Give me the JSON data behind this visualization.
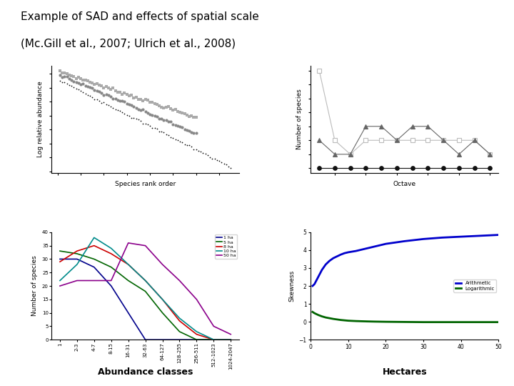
{
  "title_line1": "Example of SAD and effects of spatial scale",
  "title_line2": "(Mc.Gill et al., 2007; Ulrich et al., 2008)",
  "title_fontsize": 11,
  "sad_xlabel": "Species rank order",
  "sad_ylabel": "Log relative abundance",
  "octave_xlabel": "Octave",
  "octave_ylabel": "Number of species",
  "octave_series": [
    {
      "marker": "s",
      "color": "#bbbbbb",
      "mfc": "white",
      "x": [
        1,
        2,
        3,
        4,
        5,
        6,
        7,
        8,
        9,
        10,
        11,
        12
      ],
      "y": [
        8,
        3,
        2,
        3,
        3,
        3,
        3,
        3,
        3,
        3,
        3,
        2
      ]
    },
    {
      "marker": "^",
      "color": "#666666",
      "mfc": "#666666",
      "x": [
        1,
        2,
        3,
        4,
        5,
        6,
        7,
        8,
        9,
        10,
        11,
        12
      ],
      "y": [
        3,
        2,
        2,
        4,
        4,
        3,
        4,
        4,
        3,
        2,
        3,
        2
      ]
    },
    {
      "marker": "o",
      "color": "#111111",
      "mfc": "#111111",
      "x": [
        1,
        2,
        3,
        4,
        5,
        6,
        7,
        8,
        9,
        10,
        11,
        12
      ],
      "y": [
        1,
        1,
        1,
        1,
        1,
        1,
        1,
        1,
        1,
        1,
        1,
        1
      ]
    }
  ],
  "abund_xlabel": "Abundance classes",
  "abund_ylabel": "Number of species",
  "abund_xticks": [
    "1",
    "2-3",
    "4-7",
    "8-15",
    "16-31",
    "32-63",
    "64-127",
    "128-255",
    "256-511",
    "512-1023",
    "1024-2047"
  ],
  "abund_series": [
    {
      "label": "1 ha",
      "color": "#00008B",
      "y": [
        30,
        30,
        27,
        20,
        10,
        0,
        0,
        0,
        0,
        0,
        0
      ]
    },
    {
      "label": "5 ha",
      "color": "#006400",
      "y": [
        33,
        32,
        30,
        27,
        22,
        18,
        10,
        3,
        0,
        0,
        0
      ]
    },
    {
      "label": "8 ha",
      "color": "#CC0000",
      "y": [
        29,
        33,
        35,
        32,
        28,
        22,
        15,
        7,
        2,
        0,
        0
      ]
    },
    {
      "label": "10 ha",
      "color": "#008B8B",
      "y": [
        22,
        28,
        38,
        34,
        28,
        22,
        15,
        8,
        3,
        0,
        0
      ]
    },
    {
      "label": "50 ha",
      "color": "#8B008B",
      "y": [
        20,
        22,
        22,
        22,
        36,
        35,
        28,
        22,
        15,
        5,
        2
      ]
    }
  ],
  "skew_xlabel": "Hectares",
  "skew_ylabel": "Skewness",
  "skew_series": [
    {
      "label": "Arithmetic",
      "color": "#0000CC",
      "x": [
        0.5,
        1,
        2,
        3,
        4,
        5,
        6,
        7,
        8,
        9,
        10,
        12,
        15,
        17,
        20,
        25,
        30,
        35,
        40,
        45,
        50
      ],
      "y": [
        2.0,
        2.1,
        2.5,
        2.9,
        3.2,
        3.4,
        3.55,
        3.65,
        3.75,
        3.83,
        3.88,
        3.95,
        4.1,
        4.2,
        4.35,
        4.5,
        4.62,
        4.7,
        4.75,
        4.8,
        4.85
      ]
    },
    {
      "label": "Logarithmic",
      "color": "#006400",
      "x": [
        0.5,
        1,
        2,
        3,
        4,
        5,
        6,
        7,
        8,
        9,
        10,
        12,
        15,
        17,
        20,
        25,
        30,
        35,
        40,
        45,
        50
      ],
      "y": [
        0.55,
        0.48,
        0.38,
        0.3,
        0.24,
        0.2,
        0.16,
        0.13,
        0.1,
        0.08,
        0.06,
        0.04,
        0.02,
        0.01,
        0.0,
        -0.01,
        -0.02,
        -0.02,
        -0.02,
        -0.02,
        -0.02
      ]
    }
  ],
  "skew_ylim": [
    -1,
    5
  ],
  "skew_xlim": [
    0,
    50
  ],
  "bg_color": "#ffffff"
}
